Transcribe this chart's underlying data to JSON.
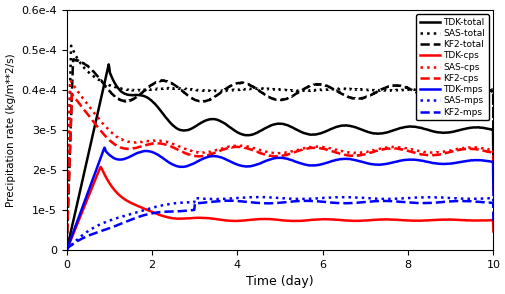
{
  "xlabel": "Time (day)",
  "ylabel": "Precipitation rate (kg/m**2/s)",
  "xlim": [
    0,
    10
  ],
  "ylim": [
    0,
    6e-05
  ],
  "xticks": [
    0,
    2,
    4,
    6,
    8,
    10
  ],
  "yticks": [
    0,
    1e-05,
    2e-05,
    3e-05,
    4e-05,
    5e-05,
    6e-05
  ],
  "background_color": "#ffffff",
  "curves": [
    {
      "label": "TDK-total",
      "color": "black",
      "linestyle": "-",
      "linewidth": 1.8
    },
    {
      "label": "SAS-total",
      "color": "black",
      "linestyle": ":",
      "linewidth": 1.8
    },
    {
      "label": "KF2-total",
      "color": "black",
      "linestyle": "--",
      "linewidth": 1.8
    },
    {
      "label": "TDK-cps",
      "color": "red",
      "linestyle": "-",
      "linewidth": 1.8
    },
    {
      "label": "SAS-cps",
      "color": "red",
      "linestyle": ":",
      "linewidth": 1.8
    },
    {
      "label": "KF2-cps",
      "color": "red",
      "linestyle": "--",
      "linewidth": 1.8
    },
    {
      "label": "TDK-mps",
      "color": "blue",
      "linestyle": "-",
      "linewidth": 1.8
    },
    {
      "label": "SAS-mps",
      "color": "blue",
      "linestyle": ":",
      "linewidth": 1.8
    },
    {
      "label": "KF2-mps",
      "color": "blue",
      "linestyle": "--",
      "linewidth": 1.8
    }
  ]
}
